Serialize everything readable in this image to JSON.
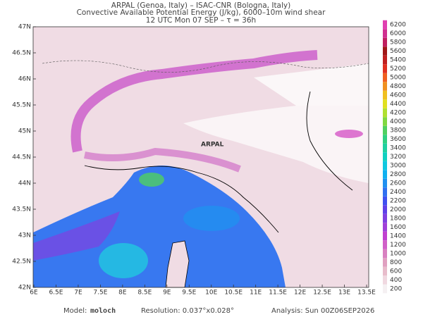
{
  "header": {
    "line1": "ARPAL (Genoa, Italy)  –  ISAC-CNR (Bologna, Italy)",
    "line2": "Convective Available Potential Energy (J/kg), 6000–10m wind shear",
    "line3": "12 UTC Mon 07 SEP  –  τ = 36h"
  },
  "map": {
    "lat_labels": [
      "47N",
      "46.5N",
      "46N",
      "45.5N",
      "45N",
      "44.5N",
      "44N",
      "43.5N",
      "43N",
      "42.5N",
      "42N"
    ],
    "lon_labels": [
      "6E",
      "6.5E",
      "7E",
      "7.5E",
      "8E",
      "8.5E",
      "9E",
      "9.5E",
      "10E",
      "10.5E",
      "11E",
      "11.5E",
      "12E",
      "12.5E",
      "13E",
      "13.5E"
    ],
    "watermark": "ARPAL"
  },
  "colorbar": {
    "labels": [
      200,
      400,
      600,
      800,
      1000,
      1200,
      1400,
      1600,
      1800,
      2000,
      2200,
      2400,
      2600,
      2800,
      3000,
      3200,
      3400,
      3600,
      3800,
      4000,
      4200,
      4400,
      4600,
      4800,
      5000,
      5200,
      5400,
      5600,
      5800,
      6000,
      6200
    ],
    "colors": [
      "#f5f0f2",
      "#f0d8e0",
      "#e8bccb",
      "#e0a0c0",
      "#d880c0",
      "#d060c8",
      "#c040d0",
      "#a040d8",
      "#8040e0",
      "#6040e8",
      "#4050f0",
      "#3070f0",
      "#2090f0",
      "#10b0f0",
      "#10c8e0",
      "#10d0c0",
      "#20d0a0",
      "#30d080",
      "#50d060",
      "#80d840",
      "#b0e030",
      "#e0e020",
      "#f0c020",
      "#f09020",
      "#f06020",
      "#e03020",
      "#c02020",
      "#a01818",
      "#c02060",
      "#d03090",
      "#e040b0"
    ]
  },
  "footer": {
    "model_label": "Model:",
    "model": "moloch",
    "resolution": "Resolution: 0.037°x0.028°",
    "analysis": "Analysis: Sun 00Z06SEP2026"
  }
}
